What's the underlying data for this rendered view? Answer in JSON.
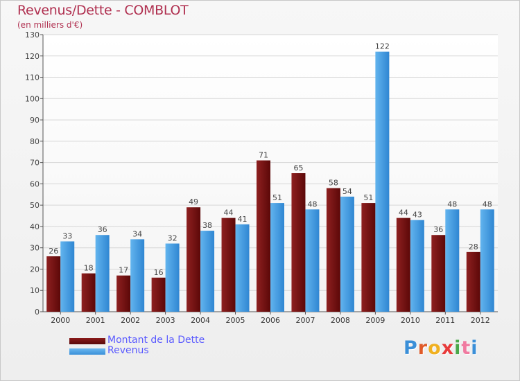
{
  "header": {
    "title": "Revenus/Dette - COMBLOT",
    "subtitle": "(en milliers d'€)"
  },
  "legend": {
    "debt_label": "Montant de la Dette",
    "revenue_label": "Revenus"
  },
  "logo": {
    "text": "Proxiti",
    "letter_colors": [
      "#3a8fd8",
      "#e05a28",
      "#f0b020",
      "#e83a3a",
      "#4aa84a",
      "#f07aa0",
      "#3a8fd8"
    ]
  },
  "colors": {
    "debt": "#6e1010",
    "revenue": "#4aa3e6",
    "title": "#b03050",
    "legend_text": "#5a5aff"
  },
  "chart_data": {
    "type": "bar",
    "title": "Revenus/Dette - COMBLOT",
    "subtitle": "(en milliers d'€)",
    "categories": [
      "2000",
      "2001",
      "2002",
      "2003",
      "2004",
      "2005",
      "2006",
      "2007",
      "2008",
      "2009",
      "2010",
      "2011",
      "2012"
    ],
    "series": [
      {
        "name": "Montant de la Dette",
        "values": [
          26,
          18,
          17,
          16,
          49,
          44,
          71,
          65,
          58,
          51,
          44,
          36,
          28
        ]
      },
      {
        "name": "Revenus",
        "values": [
          33,
          36,
          34,
          32,
          38,
          41,
          51,
          48,
          54,
          122,
          43,
          48,
          48
        ]
      }
    ],
    "ylim": [
      0,
      130
    ],
    "yticks": [
      0,
      10,
      20,
      30,
      40,
      50,
      60,
      70,
      80,
      90,
      100,
      110,
      120,
      130
    ],
    "xlabel": "",
    "ylabel": "",
    "grid": true,
    "legend_position": "bottom-left"
  }
}
